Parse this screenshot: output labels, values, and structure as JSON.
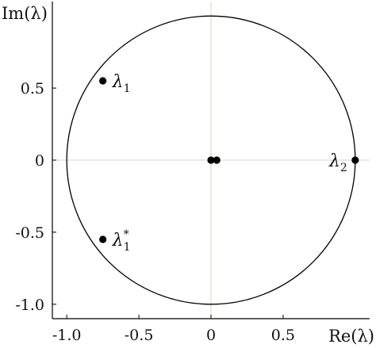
{
  "chart_data": {
    "type": "scatter",
    "title": "",
    "xlabel": "Re(λ)",
    "ylabel": "Im(λ)",
    "xlim": [
      -1.1,
      1.1
    ],
    "ylim": [
      -1.1,
      1.1
    ],
    "xticks": [
      -1.0,
      -0.5,
      0,
      0.5
    ],
    "xtick_labels": [
      "-1.0",
      "-0.5",
      "0",
      "0.5"
    ],
    "yticks": [
      0.5,
      0,
      -0.5,
      -1.0
    ],
    "ytick_labels": [
      "0.5",
      "0",
      "-0.5",
      "-1.0"
    ],
    "grid": false,
    "zero_lines": true,
    "unit_circle": true,
    "colors": {
      "points": "#000000",
      "circle": "#000000",
      "zero_line_vertical": "#d9d9b0",
      "zero_line_horizontal": "#d6d6d6",
      "frame": "#000000"
    },
    "points": [
      {
        "x": -0.75,
        "y": 0.55,
        "label": "λ",
        "sub": "1",
        "sup": ""
      },
      {
        "x": -0.75,
        "y": -0.55,
        "label": "λ",
        "sub": "1",
        "sup": "*"
      },
      {
        "x": 1.0,
        "y": 0.0,
        "label": "λ",
        "sub": "2",
        "sup": ""
      },
      {
        "x": 0.0,
        "y": 0.0,
        "label": "",
        "sub": "",
        "sup": ""
      },
      {
        "x": 0.04,
        "y": 0.0,
        "label": "",
        "sub": "",
        "sup": ""
      }
    ]
  }
}
